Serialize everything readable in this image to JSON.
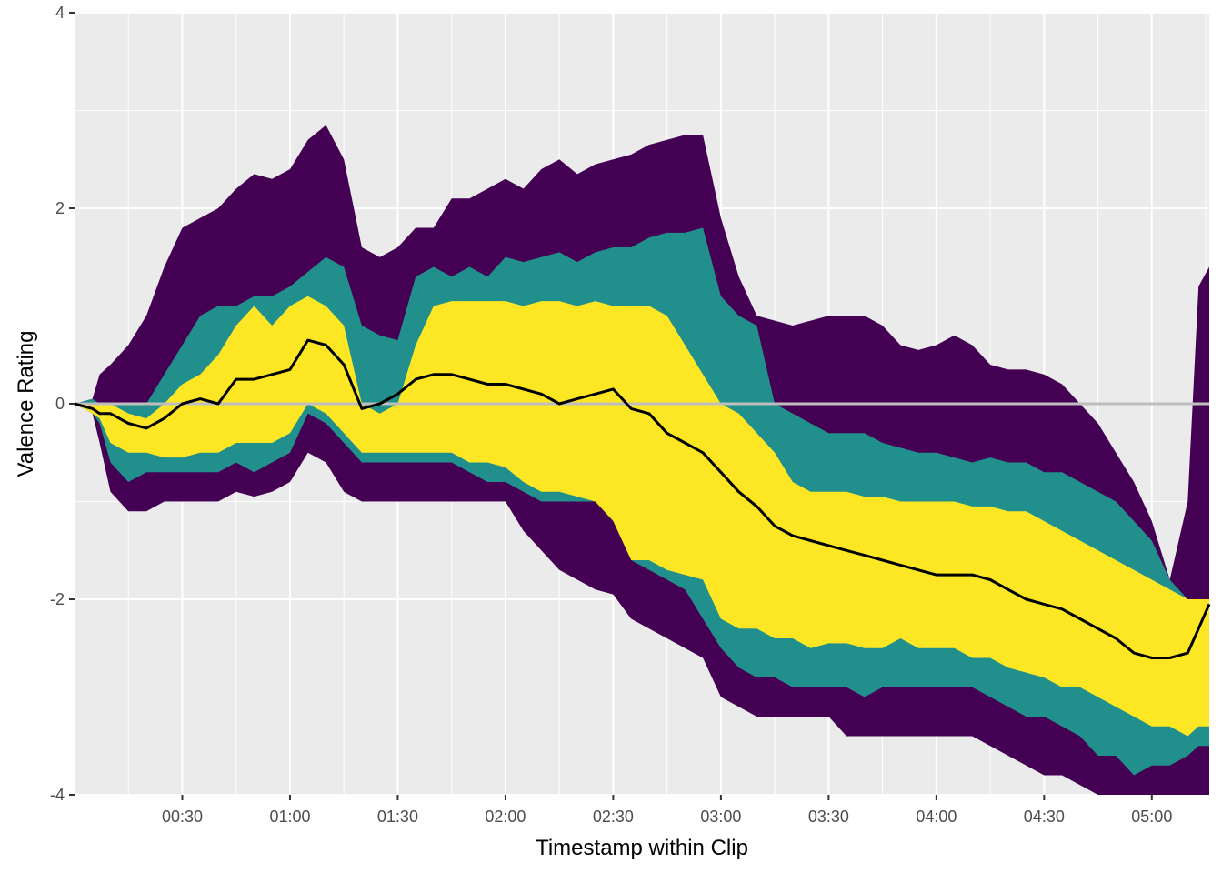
{
  "chart_data": {
    "type": "area",
    "title": "",
    "xlabel": "Timestamp within Clip",
    "ylabel": "Valence Rating",
    "x_unit": "seconds",
    "xlim": [
      0,
      316
    ],
    "ylim": [
      -4,
      4
    ],
    "x_ticks": [
      {
        "value": 30,
        "label": "00:30"
      },
      {
        "value": 60,
        "label": "01:00"
      },
      {
        "value": 90,
        "label": "01:30"
      },
      {
        "value": 120,
        "label": "02:00"
      },
      {
        "value": 150,
        "label": "02:30"
      },
      {
        "value": 180,
        "label": "03:00"
      },
      {
        "value": 210,
        "label": "03:30"
      },
      {
        "value": 240,
        "label": "04:00"
      },
      {
        "value": 270,
        "label": "04:30"
      },
      {
        "value": 300,
        "label": "05:00"
      }
    ],
    "y_ticks": [
      {
        "value": -4,
        "label": "-4"
      },
      {
        "value": -2,
        "label": "-2"
      },
      {
        "value": 0,
        "label": "0"
      },
      {
        "value": 2,
        "label": "2"
      },
      {
        "value": 4,
        "label": "4"
      }
    ],
    "grid": true,
    "legend": "none",
    "reference_line": {
      "y": 0,
      "color": "#bebebe"
    },
    "x": [
      0,
      5,
      7,
      10,
      15,
      20,
      25,
      30,
      35,
      40,
      45,
      50,
      55,
      60,
      65,
      70,
      75,
      80,
      85,
      90,
      95,
      100,
      105,
      110,
      115,
      120,
      125,
      130,
      135,
      140,
      145,
      150,
      155,
      160,
      165,
      170,
      175,
      180,
      185,
      190,
      195,
      200,
      205,
      210,
      215,
      220,
      225,
      230,
      235,
      240,
      245,
      250,
      255,
      260,
      265,
      270,
      275,
      280,
      285,
      290,
      295,
      300,
      305,
      310,
      313,
      316
    ],
    "bands": [
      {
        "color": "#440154",
        "upper": [
          0,
          0.05,
          0.3,
          0.4,
          0.6,
          0.9,
          1.4,
          1.8,
          1.9,
          2.0,
          2.2,
          2.35,
          2.3,
          2.4,
          2.7,
          2.85,
          2.5,
          1.6,
          1.5,
          1.6,
          1.8,
          1.8,
          2.1,
          2.1,
          2.2,
          2.3,
          2.2,
          2.4,
          2.5,
          2.35,
          2.45,
          2.5,
          2.55,
          2.65,
          2.7,
          2.75,
          2.75,
          1.9,
          1.3,
          0.9,
          0.85,
          0.8,
          0.85,
          0.9,
          0.9,
          0.9,
          0.8,
          0.6,
          0.55,
          0.6,
          0.7,
          0.6,
          0.4,
          0.35,
          0.35,
          0.3,
          0.2,
          0.0,
          -0.2,
          -0.5,
          -0.8,
          -1.2,
          -1.8,
          -1.0,
          1.2,
          1.4
        ],
        "lower": [
          0,
          -0.1,
          -0.4,
          -0.9,
          -1.1,
          -1.1,
          -1.0,
          -1.0,
          -1.0,
          -1.0,
          -0.9,
          -0.95,
          -0.9,
          -0.8,
          -0.5,
          -0.6,
          -0.9,
          -1.0,
          -1.0,
          -1.0,
          -1.0,
          -1.0,
          -1.0,
          -1.0,
          -1.0,
          -1.0,
          -1.3,
          -1.5,
          -1.7,
          -1.8,
          -1.9,
          -1.95,
          -2.2,
          -2.3,
          -2.4,
          -2.5,
          -2.6,
          -3.0,
          -3.1,
          -3.2,
          -3.2,
          -3.2,
          -3.2,
          -3.2,
          -3.4,
          -3.4,
          -3.4,
          -3.4,
          -3.4,
          -3.4,
          -3.4,
          -3.4,
          -3.5,
          -3.6,
          -3.7,
          -3.8,
          -3.8,
          -3.9,
          -4.0,
          -4.0,
          -4.0,
          -4.0,
          -4.0,
          -4.0,
          -4.0,
          -4.0
        ]
      },
      {
        "color": "#21908c",
        "upper": [
          0,
          0.05,
          0.0,
          0.0,
          0.0,
          0.0,
          0.3,
          0.6,
          0.9,
          1.0,
          1.0,
          1.1,
          1.1,
          1.2,
          1.35,
          1.5,
          1.4,
          0.8,
          0.7,
          0.65,
          1.3,
          1.4,
          1.3,
          1.4,
          1.3,
          1.5,
          1.45,
          1.5,
          1.55,
          1.45,
          1.55,
          1.6,
          1.6,
          1.7,
          1.75,
          1.75,
          1.8,
          1.1,
          0.9,
          0.8,
          0.0,
          -0.1,
          -0.2,
          -0.3,
          -0.3,
          -0.3,
          -0.4,
          -0.45,
          -0.5,
          -0.5,
          -0.55,
          -0.6,
          -0.55,
          -0.6,
          -0.6,
          -0.7,
          -0.7,
          -0.8,
          -0.9,
          -1.0,
          -1.2,
          -1.4,
          -1.8,
          -2.0,
          -2.0,
          -2.0
        ],
        "lower": [
          0,
          -0.1,
          -0.2,
          -0.6,
          -0.8,
          -0.7,
          -0.7,
          -0.7,
          -0.7,
          -0.7,
          -0.6,
          -0.7,
          -0.6,
          -0.5,
          -0.1,
          -0.2,
          -0.4,
          -0.6,
          -0.6,
          -0.6,
          -0.6,
          -0.6,
          -0.6,
          -0.7,
          -0.8,
          -0.8,
          -0.9,
          -1.0,
          -1.0,
          -1.0,
          -1.0,
          -1.0,
          -1.6,
          -1.7,
          -1.8,
          -1.9,
          -2.2,
          -2.5,
          -2.7,
          -2.8,
          -2.8,
          -2.9,
          -2.9,
          -2.9,
          -2.9,
          -3.0,
          -2.9,
          -2.9,
          -2.9,
          -2.9,
          -2.9,
          -2.9,
          -3.0,
          -3.1,
          -3.2,
          -3.2,
          -3.3,
          -3.4,
          -3.6,
          -3.6,
          -3.8,
          -3.7,
          -3.7,
          -3.6,
          -3.5,
          -3.5
        ]
      },
      {
        "color": "#fde725",
        "upper": [
          0,
          0.0,
          0.0,
          0.0,
          -0.1,
          -0.15,
          0.0,
          0.2,
          0.3,
          0.5,
          0.8,
          1.0,
          0.8,
          1.0,
          1.1,
          1.0,
          0.8,
          0.0,
          -0.1,
          0.0,
          0.6,
          1.0,
          1.05,
          1.05,
          1.05,
          1.05,
          1.0,
          1.05,
          1.05,
          1.0,
          1.05,
          1.0,
          1.0,
          1.0,
          0.9,
          0.6,
          0.3,
          0.0,
          -0.1,
          -0.3,
          -0.5,
          -0.8,
          -0.9,
          -0.9,
          -0.9,
          -0.95,
          -0.95,
          -1.0,
          -1.0,
          -1.0,
          -1.0,
          -1.05,
          -1.05,
          -1.1,
          -1.1,
          -1.2,
          -1.3,
          -1.4,
          -1.5,
          -1.6,
          -1.7,
          -1.8,
          -1.9,
          -2.0,
          -2.0,
          -2.0
        ],
        "lower": [
          0,
          -0.1,
          -0.15,
          -0.4,
          -0.5,
          -0.5,
          -0.55,
          -0.55,
          -0.5,
          -0.5,
          -0.4,
          -0.4,
          -0.4,
          -0.3,
          0.0,
          -0.1,
          -0.3,
          -0.5,
          -0.5,
          -0.5,
          -0.5,
          -0.5,
          -0.5,
          -0.6,
          -0.6,
          -0.65,
          -0.8,
          -0.9,
          -0.9,
          -0.95,
          -1.0,
          -1.2,
          -1.6,
          -1.6,
          -1.7,
          -1.75,
          -1.8,
          -2.2,
          -2.3,
          -2.3,
          -2.4,
          -2.4,
          -2.5,
          -2.45,
          -2.45,
          -2.5,
          -2.5,
          -2.4,
          -2.5,
          -2.5,
          -2.5,
          -2.6,
          -2.6,
          -2.7,
          -2.75,
          -2.8,
          -2.9,
          -2.9,
          -3.0,
          -3.1,
          -3.2,
          -3.3,
          -3.3,
          -3.4,
          -3.3,
          -3.3
        ]
      }
    ],
    "series": [
      {
        "color": "#000000",
        "values": [
          0,
          -0.05,
          -0.1,
          -0.1,
          -0.2,
          -0.25,
          -0.15,
          0.0,
          0.05,
          0.0,
          0.25,
          0.25,
          0.3,
          0.35,
          0.65,
          0.6,
          0.4,
          -0.05,
          0.0,
          0.1,
          0.25,
          0.3,
          0.3,
          0.25,
          0.2,
          0.2,
          0.15,
          0.1,
          0.0,
          0.05,
          0.1,
          0.15,
          -0.05,
          -0.1,
          -0.3,
          -0.4,
          -0.5,
          -0.7,
          -0.9,
          -1.05,
          -1.25,
          -1.35,
          -1.4,
          -1.45,
          -1.5,
          -1.55,
          -1.6,
          -1.65,
          -1.7,
          -1.75,
          -1.75,
          -1.75,
          -1.8,
          -1.9,
          -2.0,
          -2.05,
          -2.1,
          -2.2,
          -2.3,
          -2.4,
          -2.55,
          -2.6,
          -2.6,
          -2.55,
          -2.3,
          -2.05
        ]
      }
    ]
  }
}
